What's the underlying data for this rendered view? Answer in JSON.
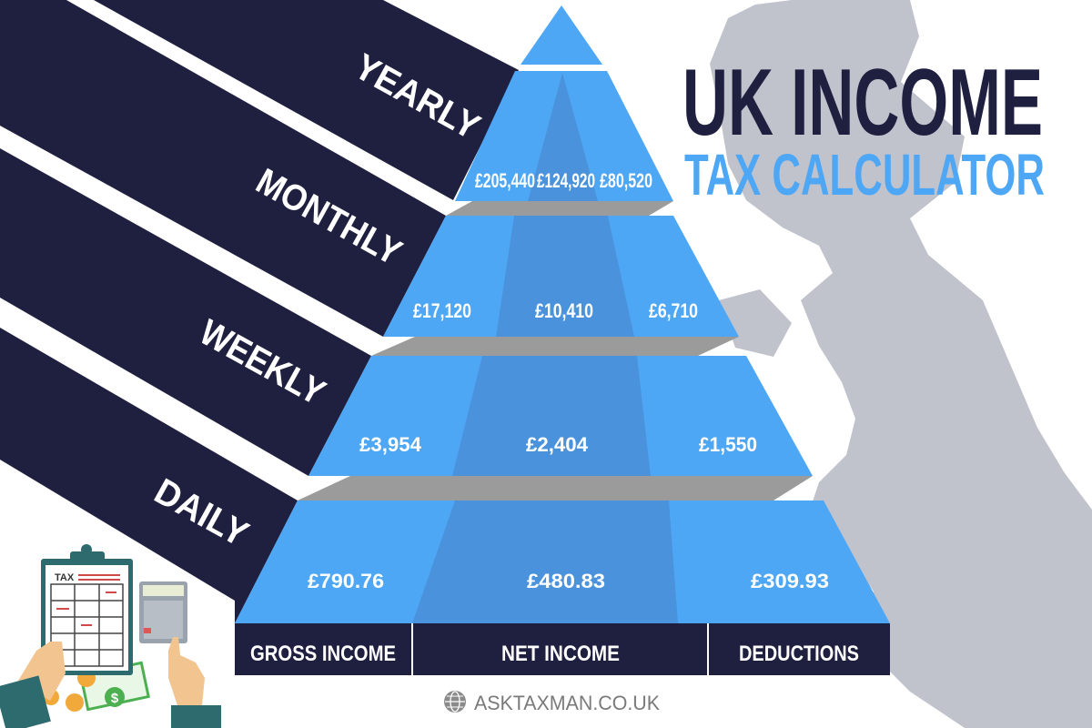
{
  "title": {
    "line1": "UK INCOME",
    "line2": "TAX CALCULATOR"
  },
  "periods": [
    "YEARLY",
    "MONTHLY",
    "WEEKLY",
    "DAILY"
  ],
  "columns": [
    "GROSS INCOME",
    "NET INCOME",
    "DEDUCTIONS"
  ],
  "rows": [
    {
      "period": "YEARLY",
      "gross": "£205,440",
      "net": "£124,920",
      "deductions": "£80,520"
    },
    {
      "period": "MONTHLY",
      "gross": "£17,120",
      "net": "£10,410",
      "deductions": "£6,710"
    },
    {
      "period": "WEEKLY",
      "gross": "£3,954",
      "net": "£2,404",
      "deductions": "£1,550"
    },
    {
      "period": "DAILY",
      "gross": "£790.76",
      "net": "£480.83",
      "deductions": "£309.93"
    }
  ],
  "illustration": {
    "clipboard_label": "TAX"
  },
  "footer": {
    "website": "ASKTAXMAN.CO.UK",
    "icon": "globe-icon"
  },
  "colors": {
    "navy": "#1f1f40",
    "blue": "#4ea7f5",
    "blue_dark": "#4a93dc",
    "slab_gray": "#9b9b9b",
    "map_gray": "#c1c3cc"
  }
}
